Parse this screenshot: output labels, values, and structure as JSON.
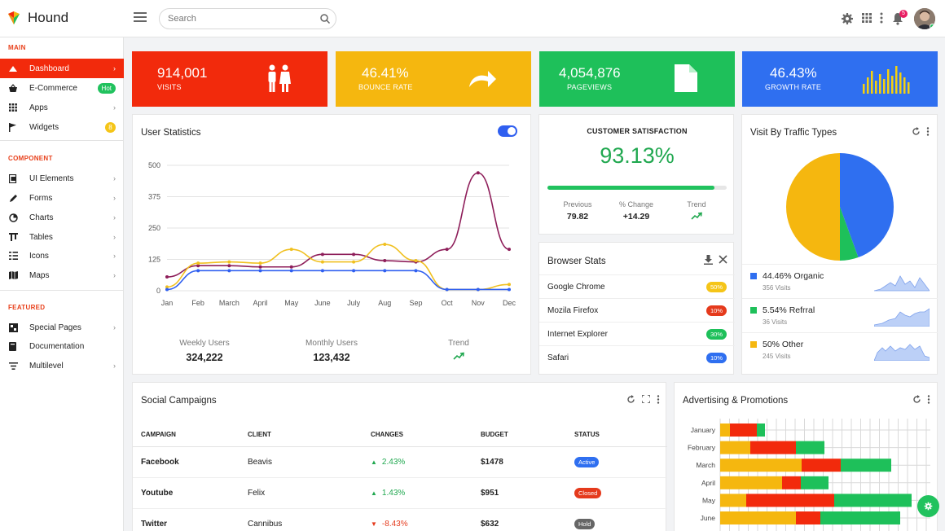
{
  "header": {
    "brand": "Hound",
    "search_placeholder": "Search",
    "notification_count": "5"
  },
  "sidebar": {
    "sections": {
      "main": "MAIN",
      "component": "COMPONENT",
      "featured": "FEATURED"
    },
    "items": [
      {
        "label": "Dashboard",
        "icon": "dashboard-icon"
      },
      {
        "label": "E-Commerce",
        "icon": "basket-icon",
        "badge": "Hot"
      },
      {
        "label": "Apps",
        "icon": "apps-icon"
      },
      {
        "label": "Widgets",
        "icon": "flag-icon",
        "badge": "8"
      },
      {
        "label": "UI Elements",
        "icon": "ui-elements-icon"
      },
      {
        "label": "Forms",
        "icon": "pencil-icon"
      },
      {
        "label": "Charts",
        "icon": "chart-icon"
      },
      {
        "label": "Tables",
        "icon": "table-icon"
      },
      {
        "label": "Icons",
        "icon": "icons-icon"
      },
      {
        "label": "Maps",
        "icon": "map-icon"
      },
      {
        "label": "Special Pages",
        "icon": "pages-icon"
      },
      {
        "label": "Documentation",
        "icon": "book-icon"
      },
      {
        "label": "Multilevel",
        "icon": "list-icon"
      }
    ]
  },
  "tiles": [
    {
      "value": "914,001",
      "label": "VISITS",
      "color": "#f22a0c",
      "icon": "people-icon"
    },
    {
      "value": "46.41%",
      "label": "BOUNCE RATE",
      "color": "#f5b70f",
      "icon": "redo-arrow-icon"
    },
    {
      "value": "4,054,876",
      "label": "PAGEVIEWS",
      "color": "#1ec05a",
      "icon": "document-icon"
    },
    {
      "value": "46.43%",
      "label": "GROWTH RATE",
      "color": "#2f6ff0",
      "icon": "bar-sparkline-icon"
    }
  ],
  "user_stats": {
    "title": "User Statistics",
    "weekly_label": "Weekly Users",
    "weekly_value": "324,222",
    "monthly_label": "Monthly Users",
    "monthly_value": "123,432",
    "trend_label": "Trend"
  },
  "chart_data": [
    {
      "type": "line",
      "title": "User Statistics",
      "categories": [
        "Jan",
        "Feb",
        "March",
        "April",
        "May",
        "June",
        "July",
        "Aug",
        "Sep",
        "Oct",
        "Nov",
        "Dec"
      ],
      "yticks": [
        0,
        125,
        250,
        375,
        500
      ],
      "ylim": [
        0,
        500
      ],
      "series": [
        {
          "color": "#8e1e5a",
          "values": [
            55,
            100,
            100,
            95,
            95,
            145,
            145,
            120,
            115,
            165,
            470,
            165
          ]
        },
        {
          "color": "#f0c020",
          "values": [
            15,
            110,
            115,
            110,
            165,
            115,
            115,
            185,
            120,
            5,
            5,
            25
          ]
        },
        {
          "color": "#2f5ff0",
          "values": [
            5,
            80,
            80,
            80,
            80,
            80,
            80,
            80,
            80,
            5,
            5,
            5
          ]
        }
      ]
    },
    {
      "type": "pie",
      "title": "Visit By Traffic Types",
      "categories": [
        "Organic",
        "Refrral",
        "Other"
      ],
      "values": [
        44.46,
        5.54,
        50
      ],
      "colors": [
        "#2f6ff0",
        "#1ec05a",
        "#f5b70f"
      ]
    },
    {
      "type": "bar",
      "title": "Advertising & Promotions",
      "categories": [
        "January",
        "February",
        "March",
        "April",
        "May",
        "June"
      ],
      "series": [
        {
          "color": "#f5b70f",
          "values": [
            12,
            37,
            100,
            76,
            32,
            93
          ]
        },
        {
          "color": "#f22a0c",
          "values": [
            33,
            56,
            48,
            23,
            108,
            30
          ]
        },
        {
          "color": "#1ec05a",
          "values": [
            10,
            35,
            62,
            34,
            95,
            98
          ]
        }
      ]
    }
  ],
  "csat": {
    "title": "CUSTOMER SATISFACTION",
    "value": "93.13%",
    "progress": 0.93,
    "previous_label": "Previous",
    "previous_value": "79.82",
    "change_label": "% Change",
    "change_value": "+14.29",
    "trend_label": "Trend"
  },
  "browser": {
    "title": "Browser Stats",
    "rows": [
      {
        "name": "Google Chrome",
        "pct": "50%",
        "color": "#f5c518"
      },
      {
        "name": "Mozila Firefox",
        "pct": "10%",
        "color": "#e53a1c"
      },
      {
        "name": "Internet Explorer",
        "pct": "30%",
        "color": "#1ec05a"
      },
      {
        "name": "Safari",
        "pct": "10%",
        "color": "#2f6ff0"
      }
    ]
  },
  "traffic": {
    "title": "Visit By Traffic Types",
    "rows": [
      {
        "title": "44.46% Organic",
        "sub": "356 Visits",
        "color": "#2f6ff0"
      },
      {
        "title": "5.54% Refrral",
        "sub": "36 Visits",
        "color": "#1ec05a"
      },
      {
        "title": "50% Other",
        "sub": "245 Visits",
        "color": "#f5b70f"
      }
    ]
  },
  "campaigns": {
    "title": "Social Campaigns",
    "headers": [
      "CAMPAIGN",
      "CLIENT",
      "CHANGES",
      "BUDGET",
      "STATUS"
    ],
    "rows": [
      {
        "campaign": "Facebook",
        "client": "Beavis",
        "change": "2.43%",
        "dir": "up",
        "budget": "$1478",
        "status": "Active",
        "status_color": "#2f6ff0"
      },
      {
        "campaign": "Youtube",
        "client": "Felix",
        "change": "1.43%",
        "dir": "up",
        "budget": "$951",
        "status": "Closed",
        "status_color": "#e53a1c"
      },
      {
        "campaign": "Twitter",
        "client": "Cannibus",
        "change": "-8.43%",
        "dir": "down",
        "budget": "$632",
        "status": "Hold",
        "status_color": "#666666"
      }
    ]
  },
  "ads": {
    "title": "Advertising & Promotions"
  }
}
